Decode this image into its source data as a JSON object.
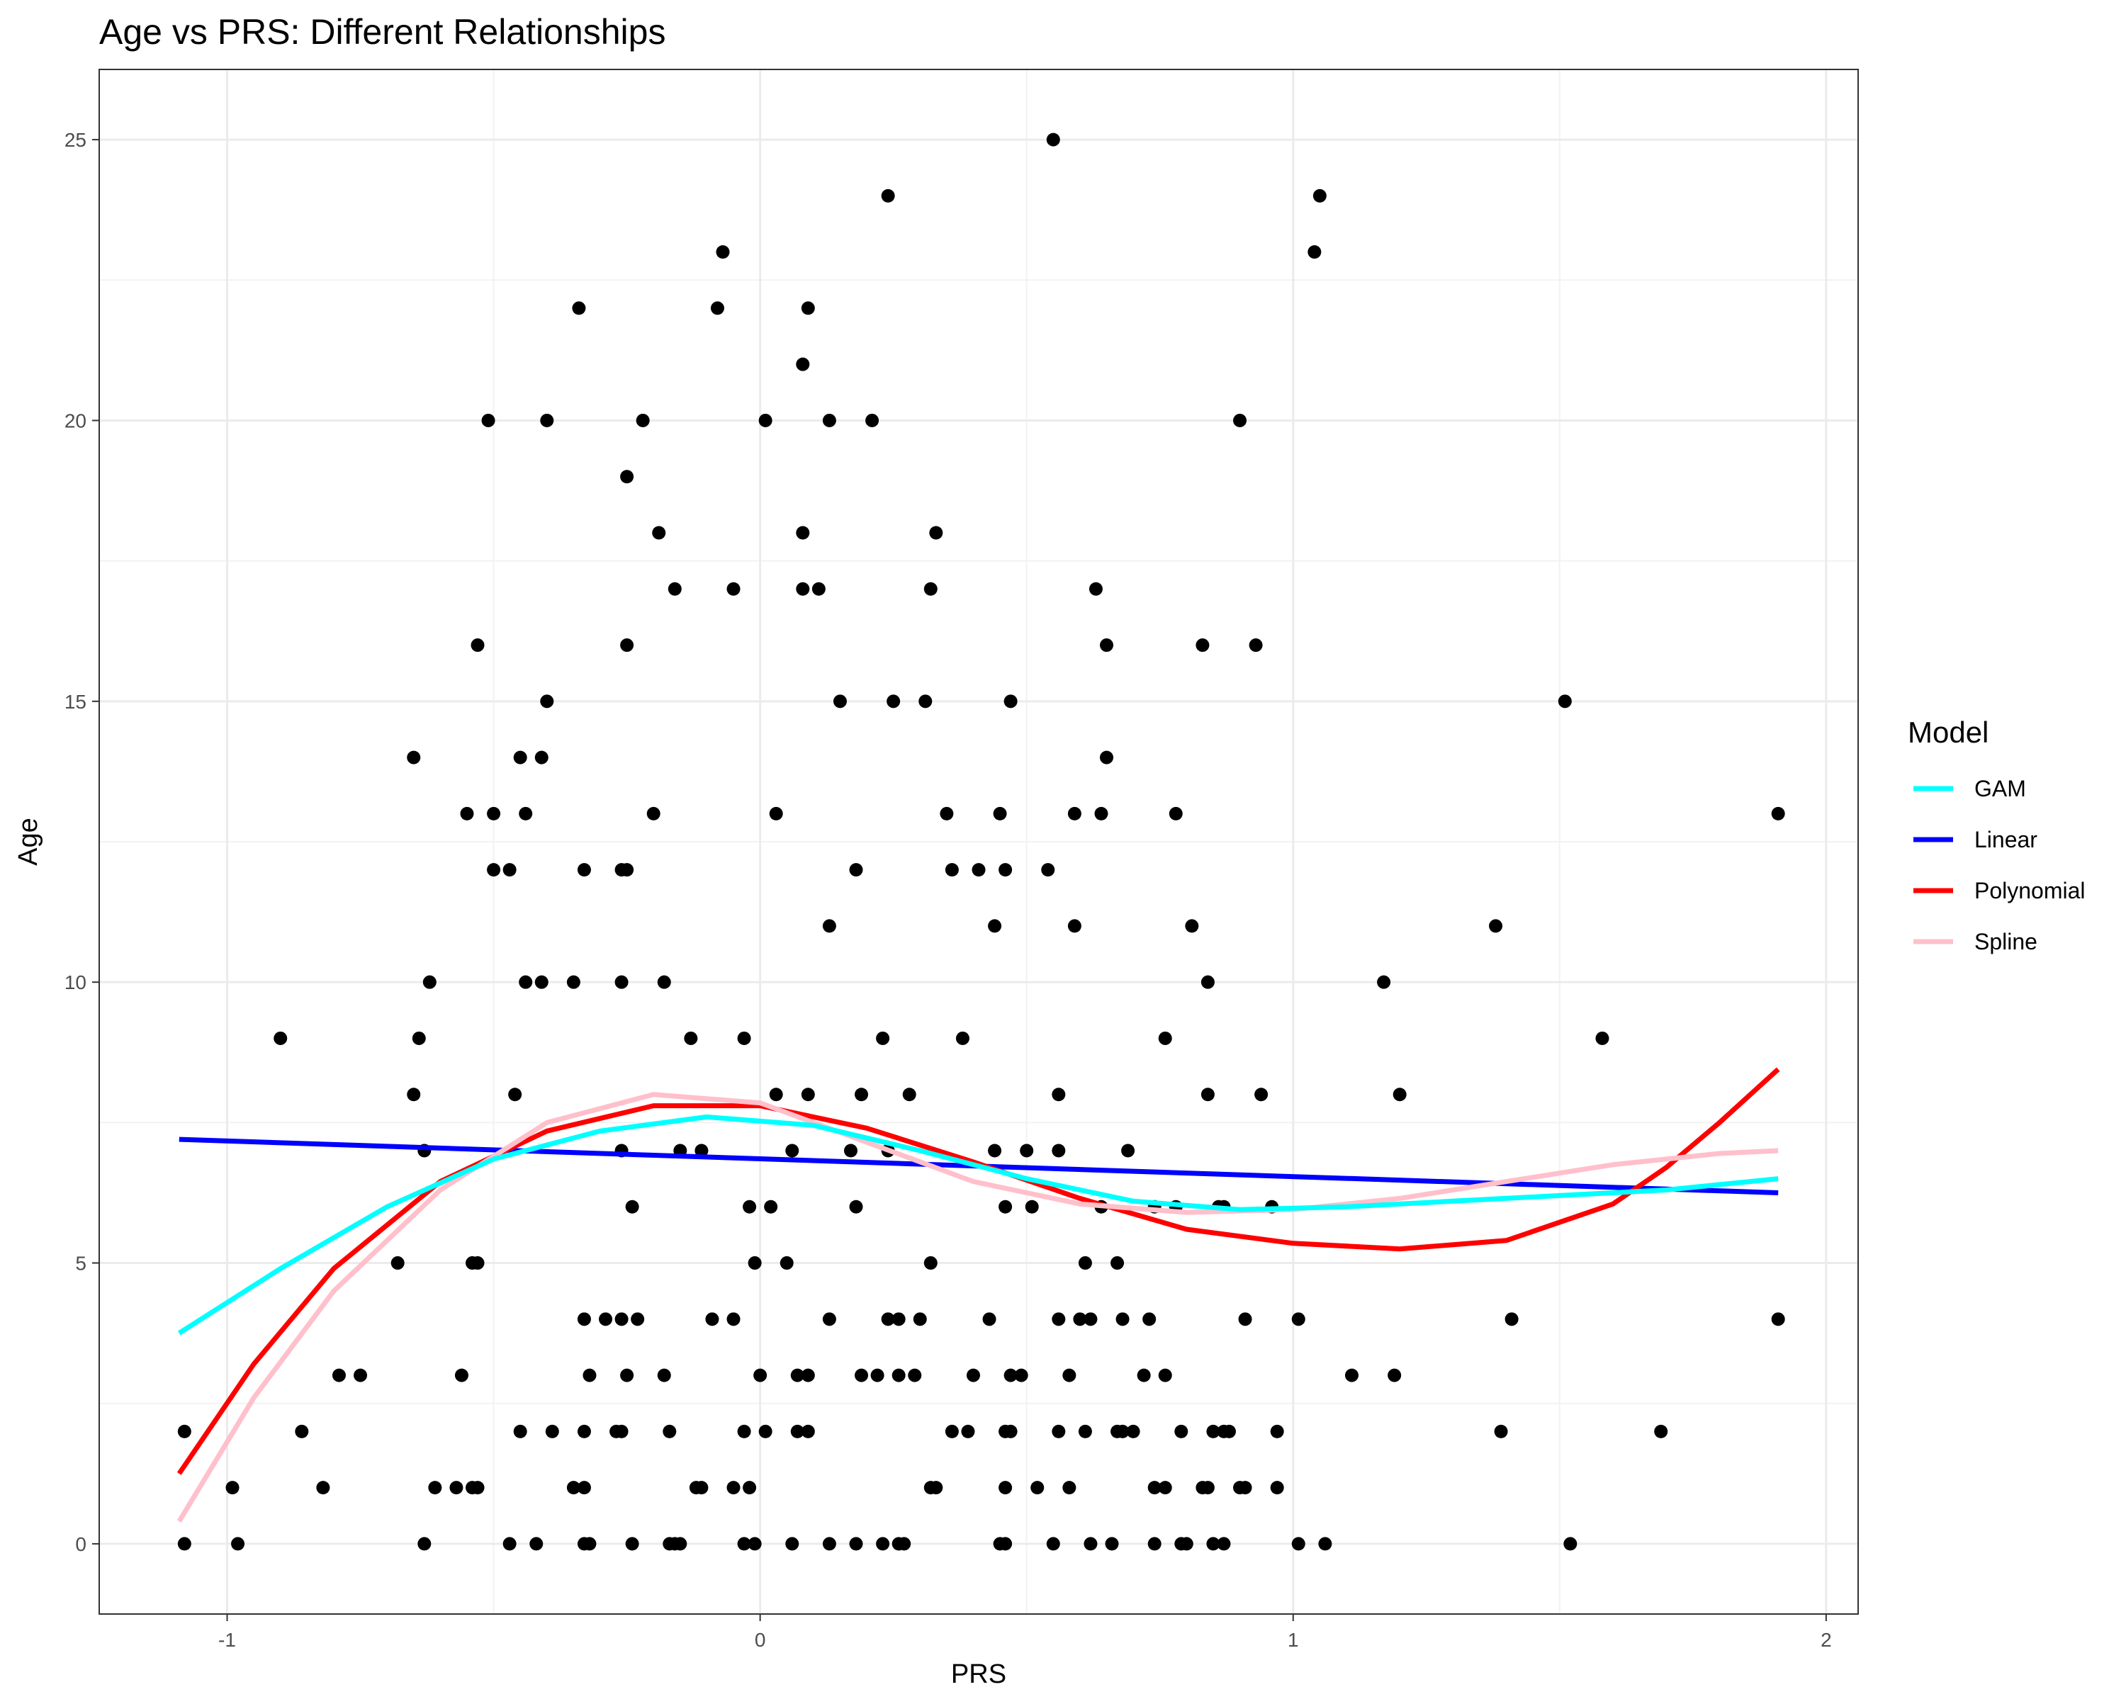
{
  "chart_data": {
    "type": "scatter",
    "title": "Age vs PRS: Different Relationships",
    "xlabel": "PRS",
    "ylabel": "Age",
    "xlim": [
      -1.24,
      2.06
    ],
    "ylim": [
      -1.25,
      26.25
    ],
    "x_ticks": [
      -1,
      0,
      1,
      2
    ],
    "x_tick_labels": [
      "-1",
      "0",
      "1",
      "2"
    ],
    "y_ticks": [
      0,
      5,
      10,
      15,
      20,
      25
    ],
    "y_tick_labels": [
      "0",
      "5",
      "10",
      "15",
      "20",
      "25"
    ],
    "grid": true,
    "legend": {
      "title": "Model",
      "position": "right",
      "entries": [
        {
          "label": "GAM",
          "color": "#00FFFF"
        },
        {
          "label": "Linear",
          "color": "#0000FF"
        },
        {
          "label": "Polynomial",
          "color": "#FF0000"
        },
        {
          "label": "Spline",
          "color": "#FFC0CB"
        }
      ]
    },
    "points": [
      [
        0.55,
        25
      ],
      [
        -0.07,
        23
      ],
      [
        0.24,
        24
      ],
      [
        1.05,
        24
      ],
      [
        1.04,
        23
      ],
      [
        -0.34,
        22
      ],
      [
        -0.08,
        22
      ],
      [
        0.09,
        22
      ],
      [
        0.08,
        21
      ],
      [
        -0.51,
        20
      ],
      [
        -0.4,
        20
      ],
      [
        -0.22,
        20
      ],
      [
        0.01,
        20
      ],
      [
        0.13,
        20
      ],
      [
        0.21,
        20
      ],
      [
        0.9,
        20
      ],
      [
        -0.25,
        19
      ],
      [
        -0.19,
        18
      ],
      [
        0.08,
        18
      ],
      [
        0.33,
        18
      ],
      [
        -0.16,
        17
      ],
      [
        -0.05,
        17
      ],
      [
        0.08,
        17
      ],
      [
        0.11,
        17
      ],
      [
        0.32,
        17
      ],
      [
        0.63,
        17
      ],
      [
        -0.53,
        16
      ],
      [
        -0.25,
        16
      ],
      [
        0.65,
        16
      ],
      [
        0.83,
        16
      ],
      [
        0.93,
        16
      ],
      [
        -0.4,
        15
      ],
      [
        0.15,
        15
      ],
      [
        0.25,
        15
      ],
      [
        0.31,
        15
      ],
      [
        0.47,
        15
      ],
      [
        1.51,
        15
      ],
      [
        -0.65,
        14
      ],
      [
        -0.45,
        14
      ],
      [
        -0.41,
        14
      ],
      [
        0.65,
        14
      ],
      [
        -0.55,
        13
      ],
      [
        -0.5,
        13
      ],
      [
        -0.44,
        13
      ],
      [
        -0.2,
        13
      ],
      [
        0.03,
        13
      ],
      [
        0.35,
        13
      ],
      [
        0.45,
        13
      ],
      [
        0.59,
        13
      ],
      [
        0.64,
        13
      ],
      [
        0.78,
        13
      ],
      [
        1.91,
        13
      ],
      [
        -0.5,
        12
      ],
      [
        -0.47,
        12
      ],
      [
        -0.33,
        12
      ],
      [
        -0.26,
        12
      ],
      [
        -0.25,
        12
      ],
      [
        0.18,
        12
      ],
      [
        0.36,
        12
      ],
      [
        0.41,
        12
      ],
      [
        0.46,
        12
      ],
      [
        0.54,
        12
      ],
      [
        0.13,
        11
      ],
      [
        0.44,
        11
      ],
      [
        0.59,
        11
      ],
      [
        0.81,
        11
      ],
      [
        1.38,
        11
      ],
      [
        -0.62,
        10
      ],
      [
        -0.44,
        10
      ],
      [
        -0.41,
        10
      ],
      [
        -0.35,
        10
      ],
      [
        -0.26,
        10
      ],
      [
        -0.18,
        10
      ],
      [
        0.84,
        10
      ],
      [
        1.17,
        10
      ],
      [
        -0.9,
        9
      ],
      [
        -0.64,
        9
      ],
      [
        -0.13,
        9
      ],
      [
        -0.03,
        9
      ],
      [
        0.23,
        9
      ],
      [
        0.38,
        9
      ],
      [
        0.76,
        9
      ],
      [
        1.58,
        9
      ],
      [
        -0.65,
        8
      ],
      [
        -0.46,
        8
      ],
      [
        0.03,
        8
      ],
      [
        0.09,
        8
      ],
      [
        0.19,
        8
      ],
      [
        0.28,
        8
      ],
      [
        0.56,
        8
      ],
      [
        0.84,
        8
      ],
      [
        0.94,
        8
      ],
      [
        1.2,
        8
      ],
      [
        -0.63,
        7
      ],
      [
        -0.26,
        7
      ],
      [
        -0.15,
        7
      ],
      [
        -0.11,
        7
      ],
      [
        0.06,
        7
      ],
      [
        0.17,
        7
      ],
      [
        0.24,
        7
      ],
      [
        0.44,
        7
      ],
      [
        0.5,
        7
      ],
      [
        0.56,
        7
      ],
      [
        0.69,
        7
      ],
      [
        -0.24,
        6
      ],
      [
        -0.02,
        6
      ],
      [
        0.02,
        6
      ],
      [
        0.18,
        6
      ],
      [
        0.46,
        6
      ],
      [
        0.51,
        6
      ],
      [
        0.64,
        6
      ],
      [
        0.74,
        6
      ],
      [
        0.78,
        6
      ],
      [
        0.86,
        6
      ],
      [
        0.87,
        6
      ],
      [
        0.96,
        6
      ],
      [
        -0.68,
        5
      ],
      [
        -0.54,
        5
      ],
      [
        -0.53,
        5
      ],
      [
        -0.01,
        5
      ],
      [
        0.05,
        5
      ],
      [
        0.32,
        5
      ],
      [
        0.61,
        5
      ],
      [
        0.67,
        5
      ],
      [
        -0.33,
        4
      ],
      [
        -0.29,
        4
      ],
      [
        -0.26,
        4
      ],
      [
        -0.23,
        4
      ],
      [
        -0.09,
        4
      ],
      [
        -0.05,
        4
      ],
      [
        0.13,
        4
      ],
      [
        0.24,
        4
      ],
      [
        0.26,
        4
      ],
      [
        0.3,
        4
      ],
      [
        0.43,
        4
      ],
      [
        0.56,
        4
      ],
      [
        0.6,
        4
      ],
      [
        0.62,
        4
      ],
      [
        0.68,
        4
      ],
      [
        0.73,
        4
      ],
      [
        0.91,
        4
      ],
      [
        1.01,
        4
      ],
      [
        1.41,
        4
      ],
      [
        1.91,
        4
      ],
      [
        -0.79,
        3
      ],
      [
        -0.75,
        3
      ],
      [
        -0.56,
        3
      ],
      [
        -0.32,
        3
      ],
      [
        -0.25,
        3
      ],
      [
        -0.18,
        3
      ],
      [
        0.0,
        3
      ],
      [
        0.07,
        3
      ],
      [
        0.09,
        3
      ],
      [
        0.19,
        3
      ],
      [
        0.22,
        3
      ],
      [
        0.26,
        3
      ],
      [
        0.29,
        3
      ],
      [
        0.4,
        3
      ],
      [
        0.47,
        3
      ],
      [
        0.49,
        3
      ],
      [
        0.58,
        3
      ],
      [
        0.72,
        3
      ],
      [
        0.76,
        3
      ],
      [
        1.11,
        3
      ],
      [
        1.19,
        3
      ],
      [
        -1.08,
        2
      ],
      [
        -0.86,
        2
      ],
      [
        -0.45,
        2
      ],
      [
        -0.39,
        2
      ],
      [
        -0.33,
        2
      ],
      [
        -0.27,
        2
      ],
      [
        -0.26,
        2
      ],
      [
        -0.17,
        2
      ],
      [
        -0.03,
        2
      ],
      [
        0.01,
        2
      ],
      [
        0.07,
        2
      ],
      [
        0.09,
        2
      ],
      [
        0.36,
        2
      ],
      [
        0.39,
        2
      ],
      [
        0.46,
        2
      ],
      [
        0.47,
        2
      ],
      [
        0.56,
        2
      ],
      [
        0.61,
        2
      ],
      [
        0.67,
        2
      ],
      [
        0.68,
        2
      ],
      [
        0.7,
        2
      ],
      [
        0.79,
        2
      ],
      [
        0.85,
        2
      ],
      [
        0.87,
        2
      ],
      [
        0.88,
        2
      ],
      [
        0.97,
        2
      ],
      [
        1.39,
        2
      ],
      [
        1.69,
        2
      ],
      [
        -0.99,
        1
      ],
      [
        -0.82,
        1
      ],
      [
        -0.61,
        1
      ],
      [
        -0.57,
        1
      ],
      [
        -0.54,
        1
      ],
      [
        -0.53,
        1
      ],
      [
        -0.35,
        1
      ],
      [
        -0.33,
        1
      ],
      [
        -0.12,
        1
      ],
      [
        -0.11,
        1
      ],
      [
        -0.05,
        1
      ],
      [
        -0.02,
        1
      ],
      [
        0.32,
        1
      ],
      [
        0.33,
        1
      ],
      [
        0.46,
        1
      ],
      [
        0.52,
        1
      ],
      [
        0.58,
        1
      ],
      [
        0.74,
        1
      ],
      [
        0.76,
        1
      ],
      [
        0.83,
        1
      ],
      [
        0.84,
        1
      ],
      [
        0.9,
        1
      ],
      [
        0.91,
        1
      ],
      [
        0.97,
        1
      ],
      [
        -1.08,
        0
      ],
      [
        -0.98,
        0
      ],
      [
        -0.63,
        0
      ],
      [
        -0.47,
        0
      ],
      [
        -0.42,
        0
      ],
      [
        -0.33,
        0
      ],
      [
        -0.32,
        0
      ],
      [
        -0.24,
        0
      ],
      [
        -0.17,
        0
      ],
      [
        -0.16,
        0
      ],
      [
        -0.15,
        0
      ],
      [
        -0.03,
        0
      ],
      [
        -0.01,
        0
      ],
      [
        0.06,
        0
      ],
      [
        0.13,
        0
      ],
      [
        0.18,
        0
      ],
      [
        0.23,
        0
      ],
      [
        0.26,
        0
      ],
      [
        0.27,
        0
      ],
      [
        0.45,
        0
      ],
      [
        0.46,
        0
      ],
      [
        0.55,
        0
      ],
      [
        0.62,
        0
      ],
      [
        0.66,
        0
      ],
      [
        0.74,
        0
      ],
      [
        0.79,
        0
      ],
      [
        0.8,
        0
      ],
      [
        0.85,
        0
      ],
      [
        0.87,
        0
      ],
      [
        1.01,
        0
      ],
      [
        1.06,
        0
      ],
      [
        1.52,
        0
      ]
    ],
    "series": [
      {
        "name": "GAM",
        "color": "#00FFFF",
        "x": [
          -1.09,
          -0.9,
          -0.7,
          -0.5,
          -0.3,
          -0.1,
          0.1,
          0.3,
          0.5,
          0.7,
          0.9,
          1.1,
          1.3,
          1.5,
          1.7,
          1.91
        ],
        "y": [
          3.75,
          4.9,
          6.0,
          6.85,
          7.35,
          7.6,
          7.45,
          7.0,
          6.5,
          6.1,
          5.95,
          6.0,
          6.1,
          6.2,
          6.3,
          6.5
        ]
      },
      {
        "name": "Linear",
        "color": "#0000FF",
        "x": [
          -1.09,
          1.91
        ],
        "y": [
          7.2,
          6.25
        ]
      },
      {
        "name": "Polynomial",
        "color": "#FF0000",
        "x": [
          -1.09,
          -0.95,
          -0.8,
          -0.6,
          -0.4,
          -0.2,
          0.0,
          0.2,
          0.4,
          0.6,
          0.8,
          1.0,
          1.2,
          1.4,
          1.6,
          1.7,
          1.8,
          1.91
        ],
        "y": [
          1.25,
          3.2,
          4.9,
          6.45,
          7.35,
          7.8,
          7.8,
          7.4,
          6.8,
          6.15,
          5.6,
          5.35,
          5.25,
          5.4,
          6.05,
          6.7,
          7.5,
          8.45
        ]
      },
      {
        "name": "Spline",
        "color": "#FFC0CB",
        "x": [
          -1.09,
          -0.95,
          -0.8,
          -0.6,
          -0.4,
          -0.2,
          0.0,
          0.2,
          0.4,
          0.6,
          0.8,
          1.0,
          1.2,
          1.4,
          1.6,
          1.8,
          1.91
        ],
        "y": [
          0.4,
          2.6,
          4.5,
          6.3,
          7.5,
          8.0,
          7.85,
          7.15,
          6.45,
          6.05,
          5.9,
          5.95,
          6.15,
          6.45,
          6.75,
          6.95,
          7.0
        ]
      }
    ]
  }
}
